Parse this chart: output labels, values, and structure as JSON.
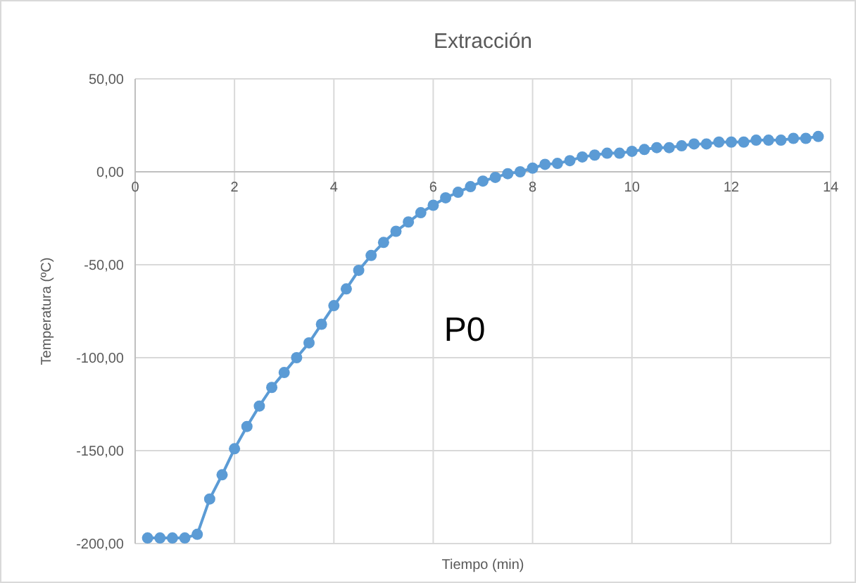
{
  "chart_data": {
    "type": "line",
    "title": "Extracción",
    "xlabel": "Tiempo (min)",
    "ylabel": "Temperatura (ºC)",
    "x": [
      0.25,
      0.5,
      0.75,
      1,
      1.25,
      1.5,
      1.75,
      2,
      2.25,
      2.5,
      2.75,
      3,
      3.25,
      3.5,
      3.75,
      4,
      4.25,
      4.5,
      4.75,
      5,
      5.25,
      5.5,
      5.75,
      6,
      6.25,
      6.5,
      6.75,
      7,
      7.25,
      7.5,
      7.75,
      8,
      8.25,
      8.5,
      8.75,
      9,
      9.25,
      9.5,
      9.75,
      10,
      10.25,
      10.5,
      10.75,
      11,
      11.25,
      11.5,
      11.75,
      12,
      12.25,
      12.5,
      12.75,
      13,
      13.25,
      13.5,
      13.75
    ],
    "series": [
      {
        "color": "#5b9bd5",
        "values": [
          -197,
          -197,
          -197,
          -197,
          -195,
          -176,
          -163,
          -149,
          -137,
          -126,
          -116,
          -108,
          -100,
          -92,
          -82,
          -72,
          -63,
          -53,
          -45,
          -38,
          -32,
          -27,
          -22,
          -18,
          -14,
          -11,
          -8,
          -5,
          -3,
          -1,
          0,
          2,
          4,
          4.5,
          6,
          8,
          9,
          10,
          10,
          11,
          12,
          13,
          13,
          14,
          15,
          15,
          16,
          16,
          16,
          17,
          17,
          17,
          18,
          18,
          19
        ]
      }
    ],
    "xlim": [
      0,
      14
    ],
    "xticks": [
      0,
      2,
      4,
      6,
      8,
      10,
      12,
      14
    ],
    "ylim": [
      -200,
      50
    ],
    "yticks": [
      {
        "value": -200,
        "label": "-200,00"
      },
      {
        "value": -150,
        "label": "-150,00"
      },
      {
        "value": -100,
        "label": "-100,00"
      },
      {
        "value": -50,
        "label": "-50,00"
      },
      {
        "value": 0,
        "label": "0,00"
      },
      {
        "value": 50,
        "label": "50,00"
      }
    ],
    "grid": true,
    "marker": "circle",
    "line_style": "solid",
    "annotations": [
      "P0"
    ]
  }
}
